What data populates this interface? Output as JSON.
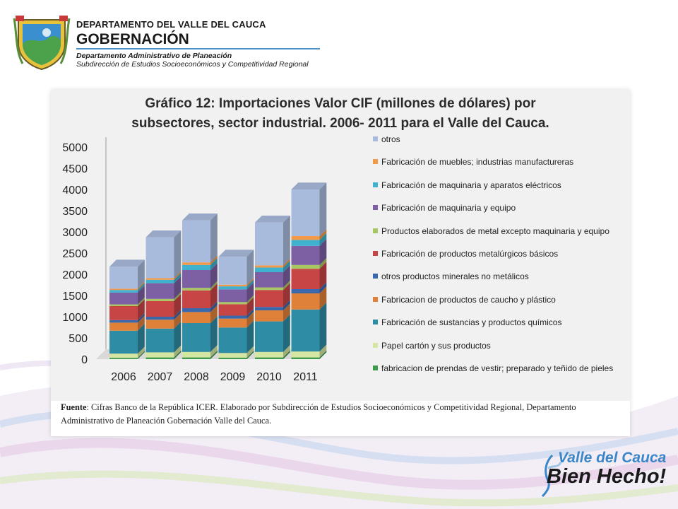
{
  "header": {
    "department": "DEPARTAMENTO DEL VALLE DEL CAUCA",
    "government": "GOBERNACIÓN",
    "office": "Departamento  Administrativo de Planeación",
    "subdivision": "Subdirección de Estudios Socioeconómicos y Competitividad Regional",
    "crest_icon": "coat-of-arms-icon"
  },
  "chart_data": {
    "type": "bar",
    "stacked": true,
    "three_d": true,
    "title": "Gráfico 12: Importaciones Valor CIF  (millones de dólares) por subsectores, sector industrial.  2006- 2011 para el Valle del Cauca.",
    "title_lines": [
      "Gráfico 12: Importaciones Valor CIF  (millones de dólares) por",
      "subsectores, sector industrial.  2006- 2011 para el Valle del Cauca."
    ],
    "categories": [
      "2006",
      "2007",
      "2008",
      "2009",
      "2010",
      "2011"
    ],
    "ylim": [
      0,
      5000
    ],
    "yticks": [
      "0",
      "500",
      "1000",
      "1500",
      "2000",
      "2500",
      "3000",
      "3500",
      "4000",
      "4500",
      "5000"
    ],
    "legend_position": "right",
    "series": [
      {
        "name": "fabricacion de prendas de vestir; preparado y teñido de pieles",
        "color": "#3f9a4c",
        "values": [
          30,
          40,
          40,
          35,
          40,
          40
        ]
      },
      {
        "name": "Papel cartón y sus productos",
        "color": "#d4e6a2",
        "values": [
          100,
          120,
          130,
          110,
          130,
          140
        ]
      },
      {
        "name": "Fabricación de sustancias y productos químicos",
        "color": "#2e8ca4",
        "values": [
          540,
          560,
          680,
          600,
          720,
          990
        ]
      },
      {
        "name": "Fabricacion de productos de caucho y plástico",
        "color": "#e0813a",
        "values": [
          190,
          210,
          260,
          210,
          260,
          380
        ]
      },
      {
        "name": "otros productos minerales no metálicos",
        "color": "#3a68ac",
        "values": [
          60,
          70,
          90,
          70,
          80,
          100
        ]
      },
      {
        "name": "Fabricación de productos metalúrgicos básicos",
        "color": "#c84546",
        "values": [
          330,
          370,
          420,
          270,
          400,
          480
        ]
      },
      {
        "name": "Productos elaborados de metal excepto maquinaria y equipo",
        "color": "#a8c662",
        "values": [
          40,
          50,
          60,
          50,
          60,
          90
        ]
      },
      {
        "name": "Fabricación de maquinaria y equipo",
        "color": "#7d5fa4",
        "values": [
          280,
          370,
          420,
          300,
          360,
          450
        ]
      },
      {
        "name": "Fabricación de maquinaria y aparatos eléctricos",
        "color": "#3eb2cf",
        "values": [
          60,
          80,
          120,
          70,
          110,
          140
        ]
      },
      {
        "name": "Fabricación de muebles; industrias manufactureras",
        "color": "#f29a4a",
        "values": [
          30,
          40,
          60,
          40,
          50,
          90
        ]
      },
      {
        "name": "otros",
        "color": "#a9bbdc",
        "values": [
          520,
          960,
          990,
          660,
          1010,
          1100
        ]
      }
    ]
  },
  "source": {
    "label": "Fuente",
    "text": ": Cifras Banco de la República ICER. Elaborado por Subdirección de Estudios Socioeconómicos y Competitividad Regional, Departamento Administrativo de Planeación Gobernación Valle del Cauca."
  },
  "brand": {
    "line1": "Valle del Cauca",
    "line2": "Bien Hecho!",
    "icon": "hummingbird-icon"
  }
}
